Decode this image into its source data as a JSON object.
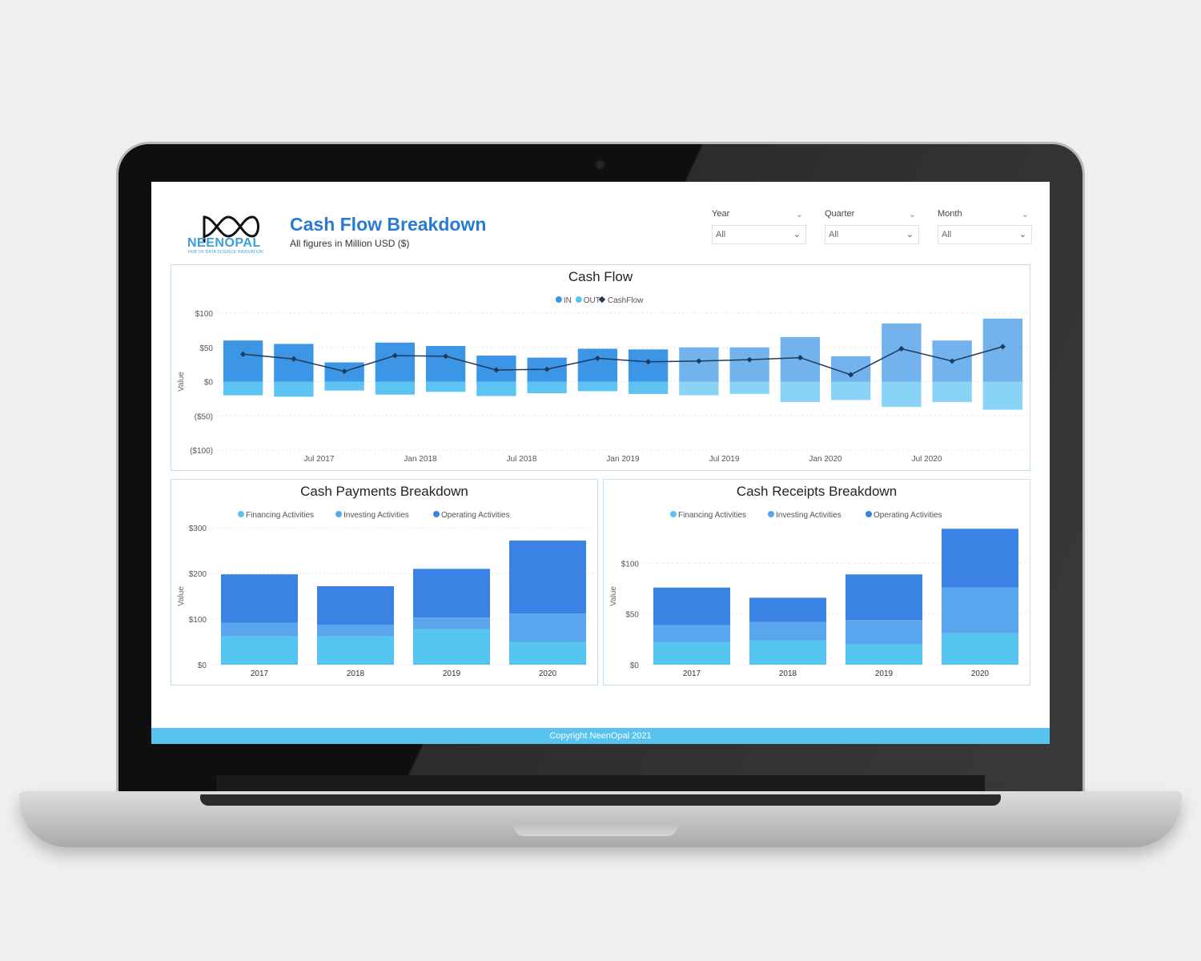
{
  "header": {
    "brand": "NEENOPAL",
    "brand_tagline": "HUB OF DATA SCIENCE INNOVATION",
    "title": "Cash Flow Breakdown",
    "subtitle": "All figures in Million USD ($)"
  },
  "filters": [
    {
      "label": "Year",
      "value": "All"
    },
    {
      "label": "Quarter",
      "value": "All"
    },
    {
      "label": "Month",
      "value": "All"
    }
  ],
  "footer": "Copyright NeenOpal 2021",
  "colors": {
    "in": "#3d95e6",
    "out": "#5cc3f2",
    "cashflow": "#1f3b5c",
    "financing": "#56c5f0",
    "investing": "#5aa6ee",
    "operating": "#3a82e4"
  },
  "chart_data": [
    {
      "type": "bar",
      "title": "Cash Flow",
      "legend": [
        "IN",
        "OUT",
        "CashFlow"
      ],
      "ylabel": "Value",
      "ylim": [
        -100,
        100
      ],
      "yticks": [
        100,
        50,
        0,
        -50,
        -100
      ],
      "ytick_labels": [
        "$100",
        "$50",
        "$0",
        "($50)",
        "($100)"
      ],
      "x_tick_labels": [
        "Jul 2017",
        "Jan 2018",
        "Jul 2018",
        "Jan 2019",
        "Jul 2019",
        "Jan 2020",
        "Jul 2020"
      ],
      "x_tick_positions": [
        1.5,
        3.5,
        5.5,
        7.5,
        9.5,
        11.5,
        13.5
      ],
      "series": [
        {
          "name": "IN",
          "values": [
            60,
            55,
            28,
            57,
            52,
            38,
            35,
            48,
            47,
            50,
            50,
            65,
            37,
            85,
            60,
            92
          ]
        },
        {
          "name": "OUT",
          "values": [
            -20,
            -22,
            -13,
            -19,
            -15,
            -21,
            -17,
            -14,
            -18,
            -20,
            -18,
            -30,
            -27,
            -37,
            -30,
            -41
          ]
        },
        {
          "name": "CashFlow",
          "values": [
            40,
            33,
            15,
            38,
            37,
            17,
            18,
            34,
            29,
            30,
            32,
            35,
            10,
            48,
            30,
            51
          ]
        }
      ]
    },
    {
      "type": "bar",
      "title": "Cash Payments Breakdown",
      "legend": [
        "Financing Activities",
        "Investing Activities",
        "Operating Activities"
      ],
      "ylabel": "Value",
      "ylim": [
        0,
        300
      ],
      "yticks": [
        0,
        100,
        200,
        300
      ],
      "ytick_labels": [
        "$0",
        "$100",
        "$200",
        "$300"
      ],
      "categories": [
        "2017",
        "2018",
        "2019",
        "2020"
      ],
      "series": [
        {
          "name": "Financing Activities",
          "values": [
            62,
            62,
            78,
            50
          ]
        },
        {
          "name": "Investing Activities",
          "values": [
            30,
            25,
            25,
            62
          ]
        },
        {
          "name": "Operating Activities",
          "values": [
            106,
            85,
            107,
            160
          ]
        }
      ]
    },
    {
      "type": "bar",
      "title": "Cash Receipts Breakdown",
      "legend": [
        "Financing Activities",
        "Investing Activities",
        "Operating Activities"
      ],
      "ylabel": "Value",
      "ylim": [
        0,
        135
      ],
      "yticks": [
        0,
        50,
        100
      ],
      "ytick_labels": [
        "$0",
        "$50",
        "$100"
      ],
      "categories": [
        "2017",
        "2018",
        "2019",
        "2020"
      ],
      "series": [
        {
          "name": "Financing Activities",
          "values": [
            22,
            24,
            20,
            31
          ]
        },
        {
          "name": "Investing Activities",
          "values": [
            17,
            18,
            24,
            45
          ]
        },
        {
          "name": "Operating Activities",
          "values": [
            37,
            24,
            45,
            58
          ]
        }
      ]
    }
  ]
}
